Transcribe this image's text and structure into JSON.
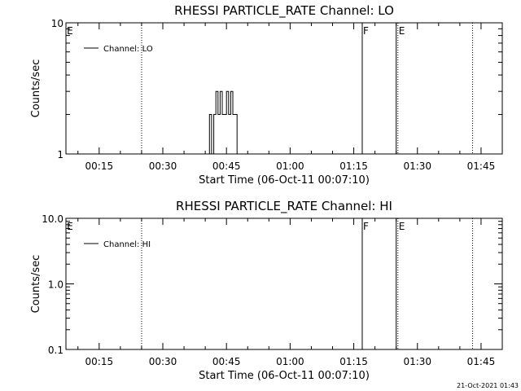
{
  "footer": {
    "timestamp": "21-Oct-2021 01:43"
  },
  "colors": {
    "background": "#ffffff",
    "foreground": "#000000"
  },
  "chart_data": [
    {
      "type": "line",
      "title": "RHESSI PARTICLE_RATE Channel: LO",
      "xlabel": "Start Time (06-Oct-11 00:07:10)",
      "ylabel": "Counts/sec",
      "yscale": "log",
      "ylim": [
        1,
        10
      ],
      "xlim_minutes": [
        7.17,
        110.0
      ],
      "x_ticks": [
        {
          "label": "00:15",
          "minutes": 15
        },
        {
          "label": "00:30",
          "minutes": 30
        },
        {
          "label": "00:45",
          "minutes": 45
        },
        {
          "label": "01:00",
          "minutes": 60
        },
        {
          "label": "01:15",
          "minutes": 75
        },
        {
          "label": "01:30",
          "minutes": 90
        },
        {
          "label": "01:45",
          "minutes": 105
        }
      ],
      "y_ticks": [
        {
          "label": "1",
          "value": 1
        },
        {
          "label": "10",
          "value": 10
        }
      ],
      "legend": {
        "entry": "Channel: LO",
        "position": "top-left"
      },
      "series": [
        {
          "name": "Channel: LO",
          "points": [
            [
              41.0,
              1
            ],
            [
              41.0,
              2
            ],
            [
              41.5,
              2
            ],
            [
              41.5,
              1
            ],
            [
              42.0,
              1
            ],
            [
              42.0,
              2
            ],
            [
              42.5,
              2
            ],
            [
              42.5,
              3
            ],
            [
              43.0,
              3
            ],
            [
              43.0,
              2
            ],
            [
              43.5,
              2
            ],
            [
              43.5,
              3
            ],
            [
              44.0,
              3
            ],
            [
              44.0,
              2
            ],
            [
              45.0,
              2
            ],
            [
              45.0,
              3
            ],
            [
              45.5,
              3
            ],
            [
              45.5,
              2
            ],
            [
              46.0,
              2
            ],
            [
              46.0,
              3
            ],
            [
              46.5,
              3
            ],
            [
              46.5,
              2
            ],
            [
              47.5,
              2
            ],
            [
              47.5,
              1
            ]
          ]
        }
      ],
      "markers": [
        {
          "minutes": 25.0,
          "label": "",
          "style": "dotted"
        },
        {
          "minutes": 7.2,
          "label": "E",
          "style": "none"
        },
        {
          "minutes": 77.0,
          "label": "F",
          "style": "solid"
        },
        {
          "minutes": 85.0,
          "label": "",
          "style": "solid"
        },
        {
          "minutes": 85.4,
          "label": "E",
          "style": "dotted"
        },
        {
          "minutes": 103.0,
          "label": "",
          "style": "dotted"
        }
      ]
    },
    {
      "type": "line",
      "title": "RHESSI PARTICLE_RATE Channel: HI",
      "xlabel": "Start Time (06-Oct-11 00:07:10)",
      "ylabel": "Counts/sec",
      "yscale": "log",
      "ylim": [
        0.1,
        10.0
      ],
      "xlim_minutes": [
        7.17,
        110.0
      ],
      "x_ticks": [
        {
          "label": "00:15",
          "minutes": 15
        },
        {
          "label": "00:30",
          "minutes": 30
        },
        {
          "label": "00:45",
          "minutes": 45
        },
        {
          "label": "01:00",
          "minutes": 60
        },
        {
          "label": "01:15",
          "minutes": 75
        },
        {
          "label": "01:30",
          "minutes": 90
        },
        {
          "label": "01:45",
          "minutes": 105
        }
      ],
      "y_ticks": [
        {
          "label": "0.1",
          "value": 0.1
        },
        {
          "label": "1.0",
          "value": 1.0
        },
        {
          "label": "10.0",
          "value": 10.0
        }
      ],
      "legend": {
        "entry": "Channel: HI",
        "position": "top-left"
      },
      "series": [
        {
          "name": "Channel: HI",
          "points": []
        }
      ],
      "markers": [
        {
          "minutes": 25.0,
          "label": "",
          "style": "dotted"
        },
        {
          "minutes": 7.2,
          "label": "E",
          "style": "none"
        },
        {
          "minutes": 77.0,
          "label": "F",
          "style": "solid"
        },
        {
          "minutes": 85.0,
          "label": "",
          "style": "solid"
        },
        {
          "minutes": 85.4,
          "label": "E",
          "style": "dotted"
        },
        {
          "minutes": 103.0,
          "label": "",
          "style": "dotted"
        }
      ]
    }
  ]
}
